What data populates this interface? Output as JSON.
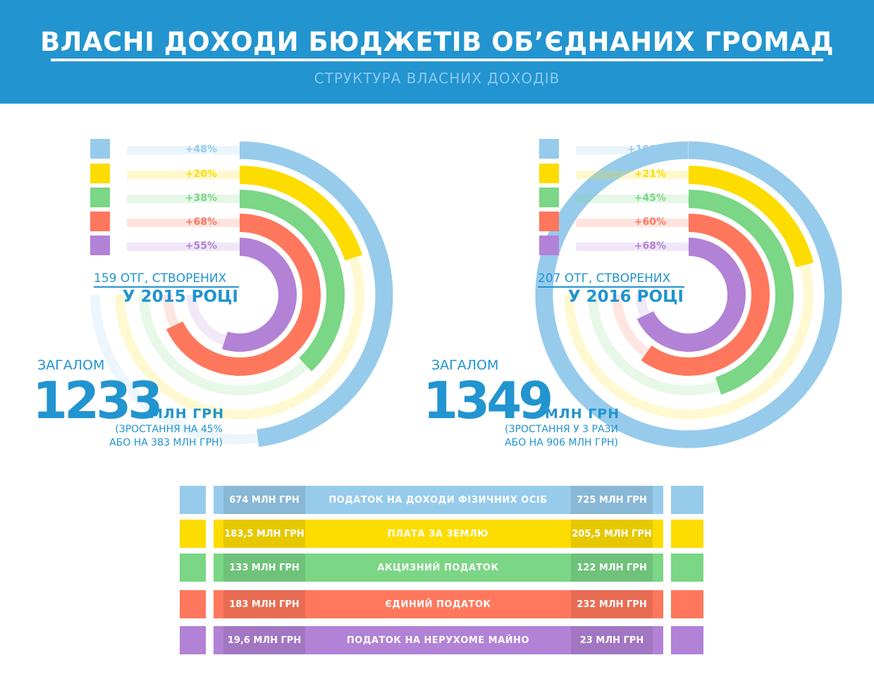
{
  "header": {
    "title": "ВЛАСНІ ДОХОДИ БЮДЖЕТІВ ОБ’ЄДНАНИХ ГРОМАД",
    "subtitle": "СТРУКТУРА ВЛАСНИХ ДОХОДІВ"
  },
  "colors": {
    "header": "#2294cf",
    "text": "#2294cf",
    "categories": [
      "#96cbec",
      "#fddc00",
      "#7bd685",
      "#ff775c",
      "#b282d6"
    ]
  },
  "chart_data": [
    {
      "type": "radial-bar",
      "caption_line1": "159 ОТГ, СТВОРЕНИХ",
      "caption_line2": "У 2015 РОЦІ",
      "labels": [
        "+48%",
        "+20%",
        "+38%",
        "+68%",
        "+55%"
      ],
      "growth_percent": [
        48,
        20,
        38,
        68,
        55
      ],
      "total_label": "ЗАГАЛОМ",
      "total": "1233",
      "unit": "МЛН  ГРН",
      "note_line1": "(ЗРОСТАННЯ НА 45%",
      "note_line2": "АБО НА 383 МЛН ГРН)"
    },
    {
      "type": "radial-bar",
      "caption_line1": "207 ОТГ, СТВОРЕНИХ",
      "caption_line2": "У 2016 РОЦІ",
      "labels": [
        "+100%",
        "+21%",
        "+45%",
        "+60%",
        "+68%"
      ],
      "growth_percent": [
        100,
        21,
        45,
        60,
        68
      ],
      "total_label": "ЗАГАЛОМ",
      "total": "1349",
      "unit": "МЛН  ГРН",
      "note_line1": "(ЗРОСТАННЯ У 3 РАЗИ",
      "note_line2": "АБО НА 906 МЛН ГРН)"
    }
  ],
  "table": {
    "rows": [
      {
        "name": "ПОДАТОК НА ДОХОДИ ФІЗИЧНИХ ОСІБ",
        "left": "674 МЛН ГРН",
        "right": "725 МЛН ГРН"
      },
      {
        "name": "ПЛАТА ЗА ЗЕМЛЮ",
        "left": "183,5 МЛН ГРН",
        "right": "205,5 МЛН ГРН"
      },
      {
        "name": "АКЦИЗНИЙ ПОДАТОК",
        "left": "133 МЛН ГРН",
        "right": "122 МЛН ГРН"
      },
      {
        "name": "ЄДИНИЙ ПОДАТОК",
        "left": "183 МЛН ГРН",
        "right": "232 МЛН ГРН"
      },
      {
        "name": "ПОДАТОК НА НЕРУХОМЕ МАЙНО",
        "left": "19,6 МЛН ГРН",
        "right": "23 МЛН ГРН"
      }
    ]
  }
}
